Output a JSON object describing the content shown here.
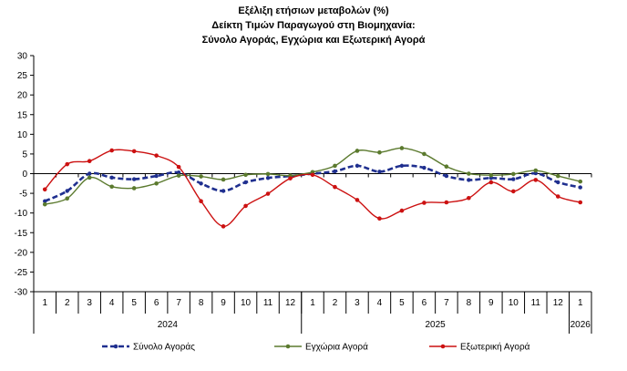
{
  "chart_data": {
    "type": "line",
    "title": [
      "Εξέλιξη ετήσιων μεταβολών (%)",
      "Δείκτη Τιμών Παραγωγού στη Βιομηχανία:",
      "Σύνολο Αγοράς, Εγχώρια και Εξωτερική Αγορά"
    ],
    "xlabel": "",
    "ylabel": "",
    "ylim": [
      -30,
      30
    ],
    "yticks": [
      30,
      25,
      20,
      15,
      10,
      5,
      0,
      -5,
      -10,
      -15,
      -20,
      -25,
      -30
    ],
    "months": [
      "1",
      "2",
      "3",
      "4",
      "5",
      "6",
      "7",
      "8",
      "9",
      "10",
      "11",
      "12",
      "1",
      "2",
      "3",
      "4",
      "5",
      "6",
      "7",
      "8",
      "9",
      "10",
      "11",
      "12",
      "1"
    ],
    "years": [
      {
        "label": "2024",
        "start": 0,
        "end": 11
      },
      {
        "label": "2025",
        "start": 12,
        "end": 23
      },
      {
        "label": "2026",
        "start": 24,
        "end": 24
      }
    ],
    "grid": false,
    "legend_position": "bottom",
    "series": [
      {
        "name": "Σύνολο Αγοράς",
        "color": "#1f2f8f",
        "style": "dashed",
        "values": [
          -7.0,
          -4.4,
          0.0,
          -1.0,
          -1.4,
          -0.6,
          0.3,
          -2.5,
          -4.4,
          -2.2,
          -1.1,
          -0.6,
          0.0,
          0.6,
          2.0,
          0.5,
          2.0,
          1.5,
          -0.6,
          -1.6,
          -1.1,
          -1.4,
          0.1,
          -2.2,
          -3.5
        ]
      },
      {
        "name": "Εγχώρια Αγορά",
        "color": "#5b7a2e",
        "style": "solid",
        "values": [
          -7.8,
          -6.3,
          -1.0,
          -3.3,
          -3.7,
          -2.5,
          -0.5,
          -0.7,
          -1.5,
          -0.3,
          -0.1,
          -0.5,
          0.4,
          2.0,
          5.8,
          5.4,
          6.5,
          5.0,
          1.8,
          0.0,
          -0.4,
          -0.1,
          0.8,
          -0.6,
          -2.0
        ]
      },
      {
        "name": "Εξωτερική Αγορά",
        "color": "#cc1111",
        "style": "solid",
        "values": [
          -4.0,
          2.4,
          3.2,
          5.9,
          5.7,
          4.6,
          1.7,
          -7.0,
          -13.4,
          -8.2,
          -5.1,
          -1.2,
          -0.3,
          -3.4,
          -6.7,
          -11.4,
          -9.4,
          -7.4,
          -7.3,
          -6.2,
          -2.2,
          -4.5,
          -1.6,
          -5.8,
          -7.3
        ]
      }
    ]
  }
}
